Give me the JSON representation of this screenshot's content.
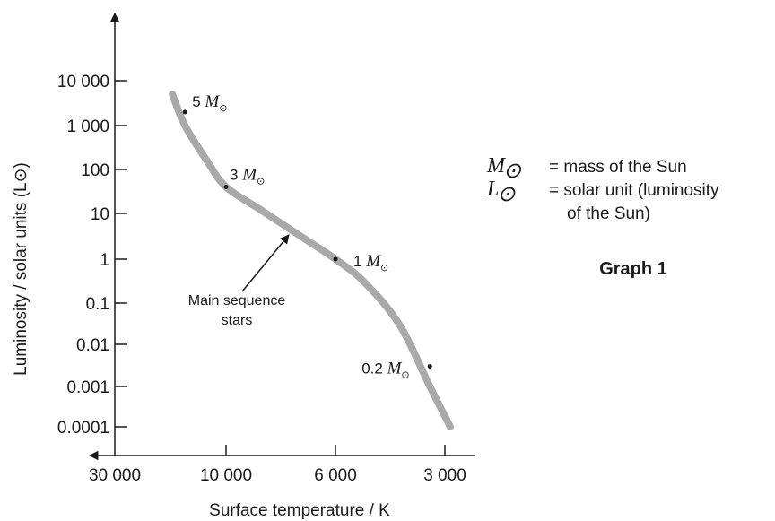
{
  "chart_data": {
    "type": "line",
    "title": "Graph 1",
    "xlabel": "Surface temperature / K",
    "ylabel": "Luminosity / solar units (L⊙)",
    "x_ticks": [
      "30 000",
      "10 000",
      "6 000",
      "3 000"
    ],
    "x_tick_values": [
      30000,
      10000,
      6000,
      3000
    ],
    "y_ticks": [
      "10 000",
      "1 000",
      "100",
      "10",
      "1",
      "0.1",
      "0.01",
      "0.001",
      "0.0001"
    ],
    "y_tick_values": [
      10000,
      1000,
      100,
      10,
      1,
      0.1,
      0.01,
      0.001,
      0.0001
    ],
    "x_scale": "reversed (hot to cool)",
    "y_scale": "log",
    "series": [
      {
        "name": "Main sequence stars",
        "color": "#a9a9a9",
        "x": [
          17000,
          15000,
          12000,
          10000,
          8500,
          7000,
          6000,
          5000,
          4000,
          3300,
          2900
        ],
        "y": [
          5000,
          1000,
          150,
          40,
          12,
          3,
          1,
          0.3,
          0.03,
          0.001,
          0.0001
        ]
      }
    ],
    "points": [
      {
        "mass": "5",
        "x": 15000,
        "y": 2000
      },
      {
        "mass": "3",
        "x": 10000,
        "y": 40
      },
      {
        "mass": "1",
        "x": 6000,
        "y": 1
      },
      {
        "mass": "0.2",
        "x": 3300,
        "y": 0.003
      }
    ],
    "annotation": {
      "line1": "Main sequence",
      "line2": "stars"
    },
    "legend": [
      {
        "symbol": "M",
        "text": "= mass of the Sun"
      },
      {
        "symbol": "L",
        "text_line1": "= solar unit (luminosity",
        "text_line2": "of the Sun)"
      }
    ],
    "sun_symbol": "⊙",
    "grid": false,
    "legend_placement": "right"
  }
}
